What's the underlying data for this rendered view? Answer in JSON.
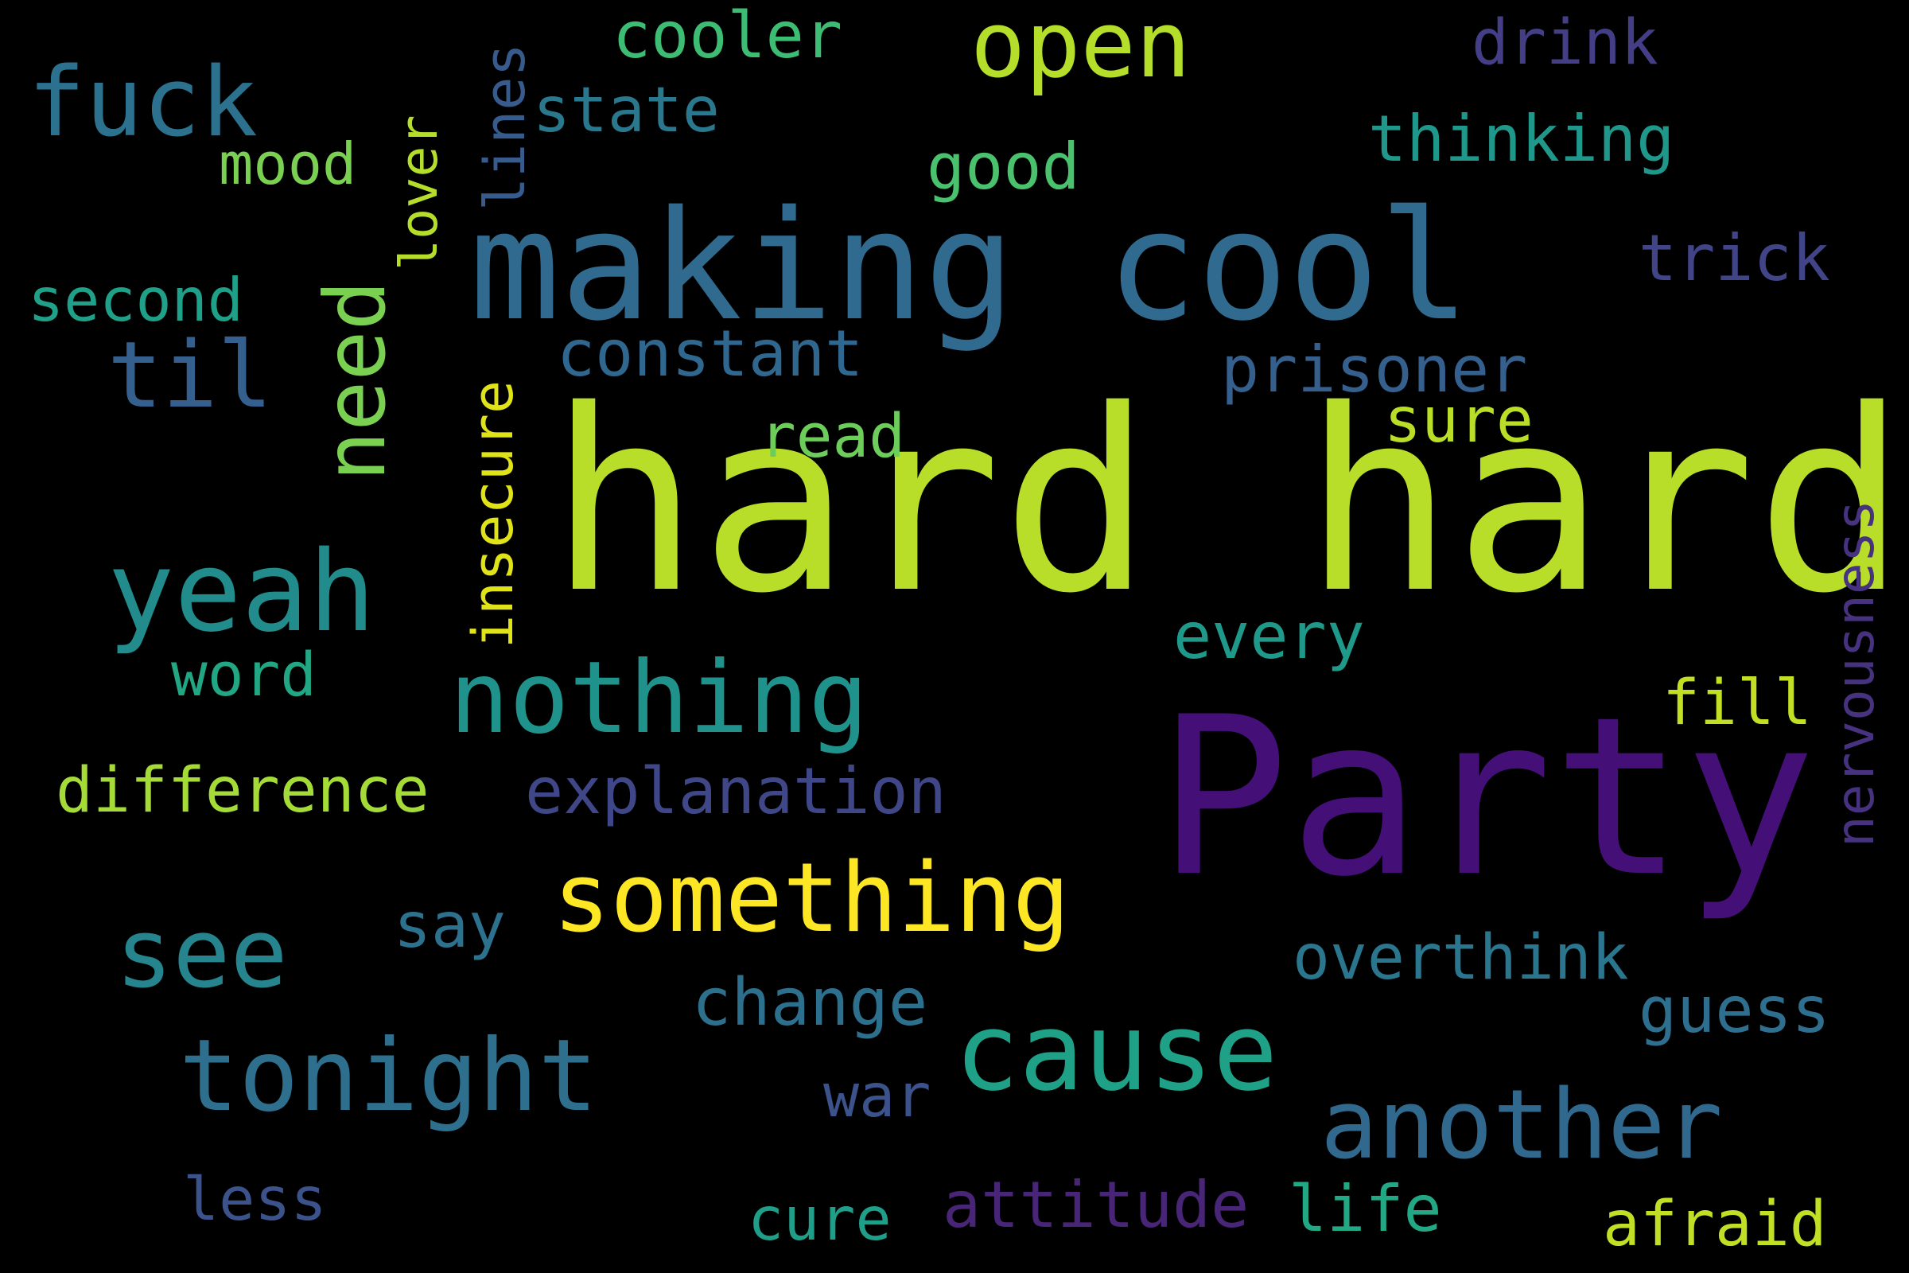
{
  "words": [
    {
      "id": "hard-hard",
      "text": "hard hard",
      "color": "#b8de29"
    },
    {
      "id": "party",
      "text": "Party",
      "color": "#440f76"
    },
    {
      "id": "making-cool",
      "text": "making cool",
      "color": "#306a8e"
    },
    {
      "id": "something",
      "text": "something",
      "color": "#fde724"
    },
    {
      "id": "nothing",
      "text": "nothing",
      "color": "#20928c"
    },
    {
      "id": "cause",
      "text": "cause",
      "color": "#1fa187"
    },
    {
      "id": "another",
      "text": "another",
      "color": "#31688e"
    },
    {
      "id": "tonight",
      "text": "tonight",
      "color": "#2e6f8e"
    },
    {
      "id": "yeah",
      "text": "yeah",
      "color": "#228c8d"
    },
    {
      "id": "see",
      "text": "see",
      "color": "#25848d"
    },
    {
      "id": "open",
      "text": "open",
      "color": "#b5de2b"
    },
    {
      "id": "fuck",
      "text": "fuck",
      "color": "#2c728e"
    },
    {
      "id": "til",
      "text": "til",
      "color": "#355f8d"
    },
    {
      "id": "need",
      "text": "need",
      "color": "#7ad151"
    },
    {
      "id": "insecure",
      "text": "insecure",
      "color": "#dfe318"
    },
    {
      "id": "lines",
      "text": "lines",
      "color": "#375b8d"
    },
    {
      "id": "lover",
      "text": "lover",
      "color": "#b5de2b"
    },
    {
      "id": "nervousness",
      "text": "nervousness",
      "color": "#46327e"
    },
    {
      "id": "cooler",
      "text": "cooler",
      "color": "#3dbc74"
    },
    {
      "id": "drink",
      "text": "drink",
      "color": "#433e85"
    },
    {
      "id": "state",
      "text": "state",
      "color": "#2a788e"
    },
    {
      "id": "thinking",
      "text": "thinking",
      "color": "#1f988b"
    },
    {
      "id": "mood",
      "text": "mood",
      "color": "#7ad151"
    },
    {
      "id": "good",
      "text": "good",
      "color": "#4ac16d"
    },
    {
      "id": "trick",
      "text": "trick",
      "color": "#414487"
    },
    {
      "id": "second",
      "text": "second",
      "color": "#1fa088"
    },
    {
      "id": "constant",
      "text": "constant",
      "color": "#30678e"
    },
    {
      "id": "prisoner",
      "text": "prisoner",
      "color": "#355f8d"
    },
    {
      "id": "read",
      "text": "read",
      "color": "#6ccd5a"
    },
    {
      "id": "sure",
      "text": "sure",
      "color": "#bade28"
    },
    {
      "id": "every",
      "text": "every",
      "color": "#1f9a8a"
    },
    {
      "id": "word",
      "text": "word",
      "color": "#22a785"
    },
    {
      "id": "fill",
      "text": "fill",
      "color": "#c2df23"
    },
    {
      "id": "difference",
      "text": "difference",
      "color": "#a5db36"
    },
    {
      "id": "explanation",
      "text": "explanation",
      "color": "#3f4788"
    },
    {
      "id": "say",
      "text": "say",
      "color": "#2c718e"
    },
    {
      "id": "overthink",
      "text": "overthink",
      "color": "#2a768e"
    },
    {
      "id": "change",
      "text": "change",
      "color": "#2d708e"
    },
    {
      "id": "guess",
      "text": "guess",
      "color": "#2e6e8e"
    },
    {
      "id": "war",
      "text": "war",
      "color": "#3b528b"
    },
    {
      "id": "less",
      "text": "less",
      "color": "#3b528b"
    },
    {
      "id": "attitude",
      "text": "attitude",
      "color": "#482576"
    },
    {
      "id": "life",
      "text": "life",
      "color": "#22a884"
    },
    {
      "id": "cure",
      "text": "cure",
      "color": "#1f9e89"
    },
    {
      "id": "afraid",
      "text": "afraid",
      "color": "#c0df25"
    }
  ]
}
